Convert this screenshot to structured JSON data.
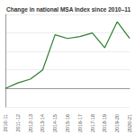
{
  "chart_data": {
    "type": "line",
    "title": "Change in national MSA Index since 2010–11",
    "categories": [
      "2010-11",
      "2011-12",
      "2012-13",
      "2013-14",
      "2014-15",
      "2015-16",
      "2016-17",
      "2017-18",
      "2018-19",
      "2019-20",
      "2020-21"
    ],
    "values": [
      0,
      0.3,
      0.5,
      1.0,
      2.9,
      2.7,
      2.8,
      3.0,
      2.2,
      3.6,
      2.7
    ],
    "color": "#2e7d32",
    "ylim": [
      -1,
      4
    ],
    "yticks": [
      -1,
      0,
      1,
      2,
      3,
      4
    ],
    "grid": true,
    "tick_labels": "x"
  }
}
